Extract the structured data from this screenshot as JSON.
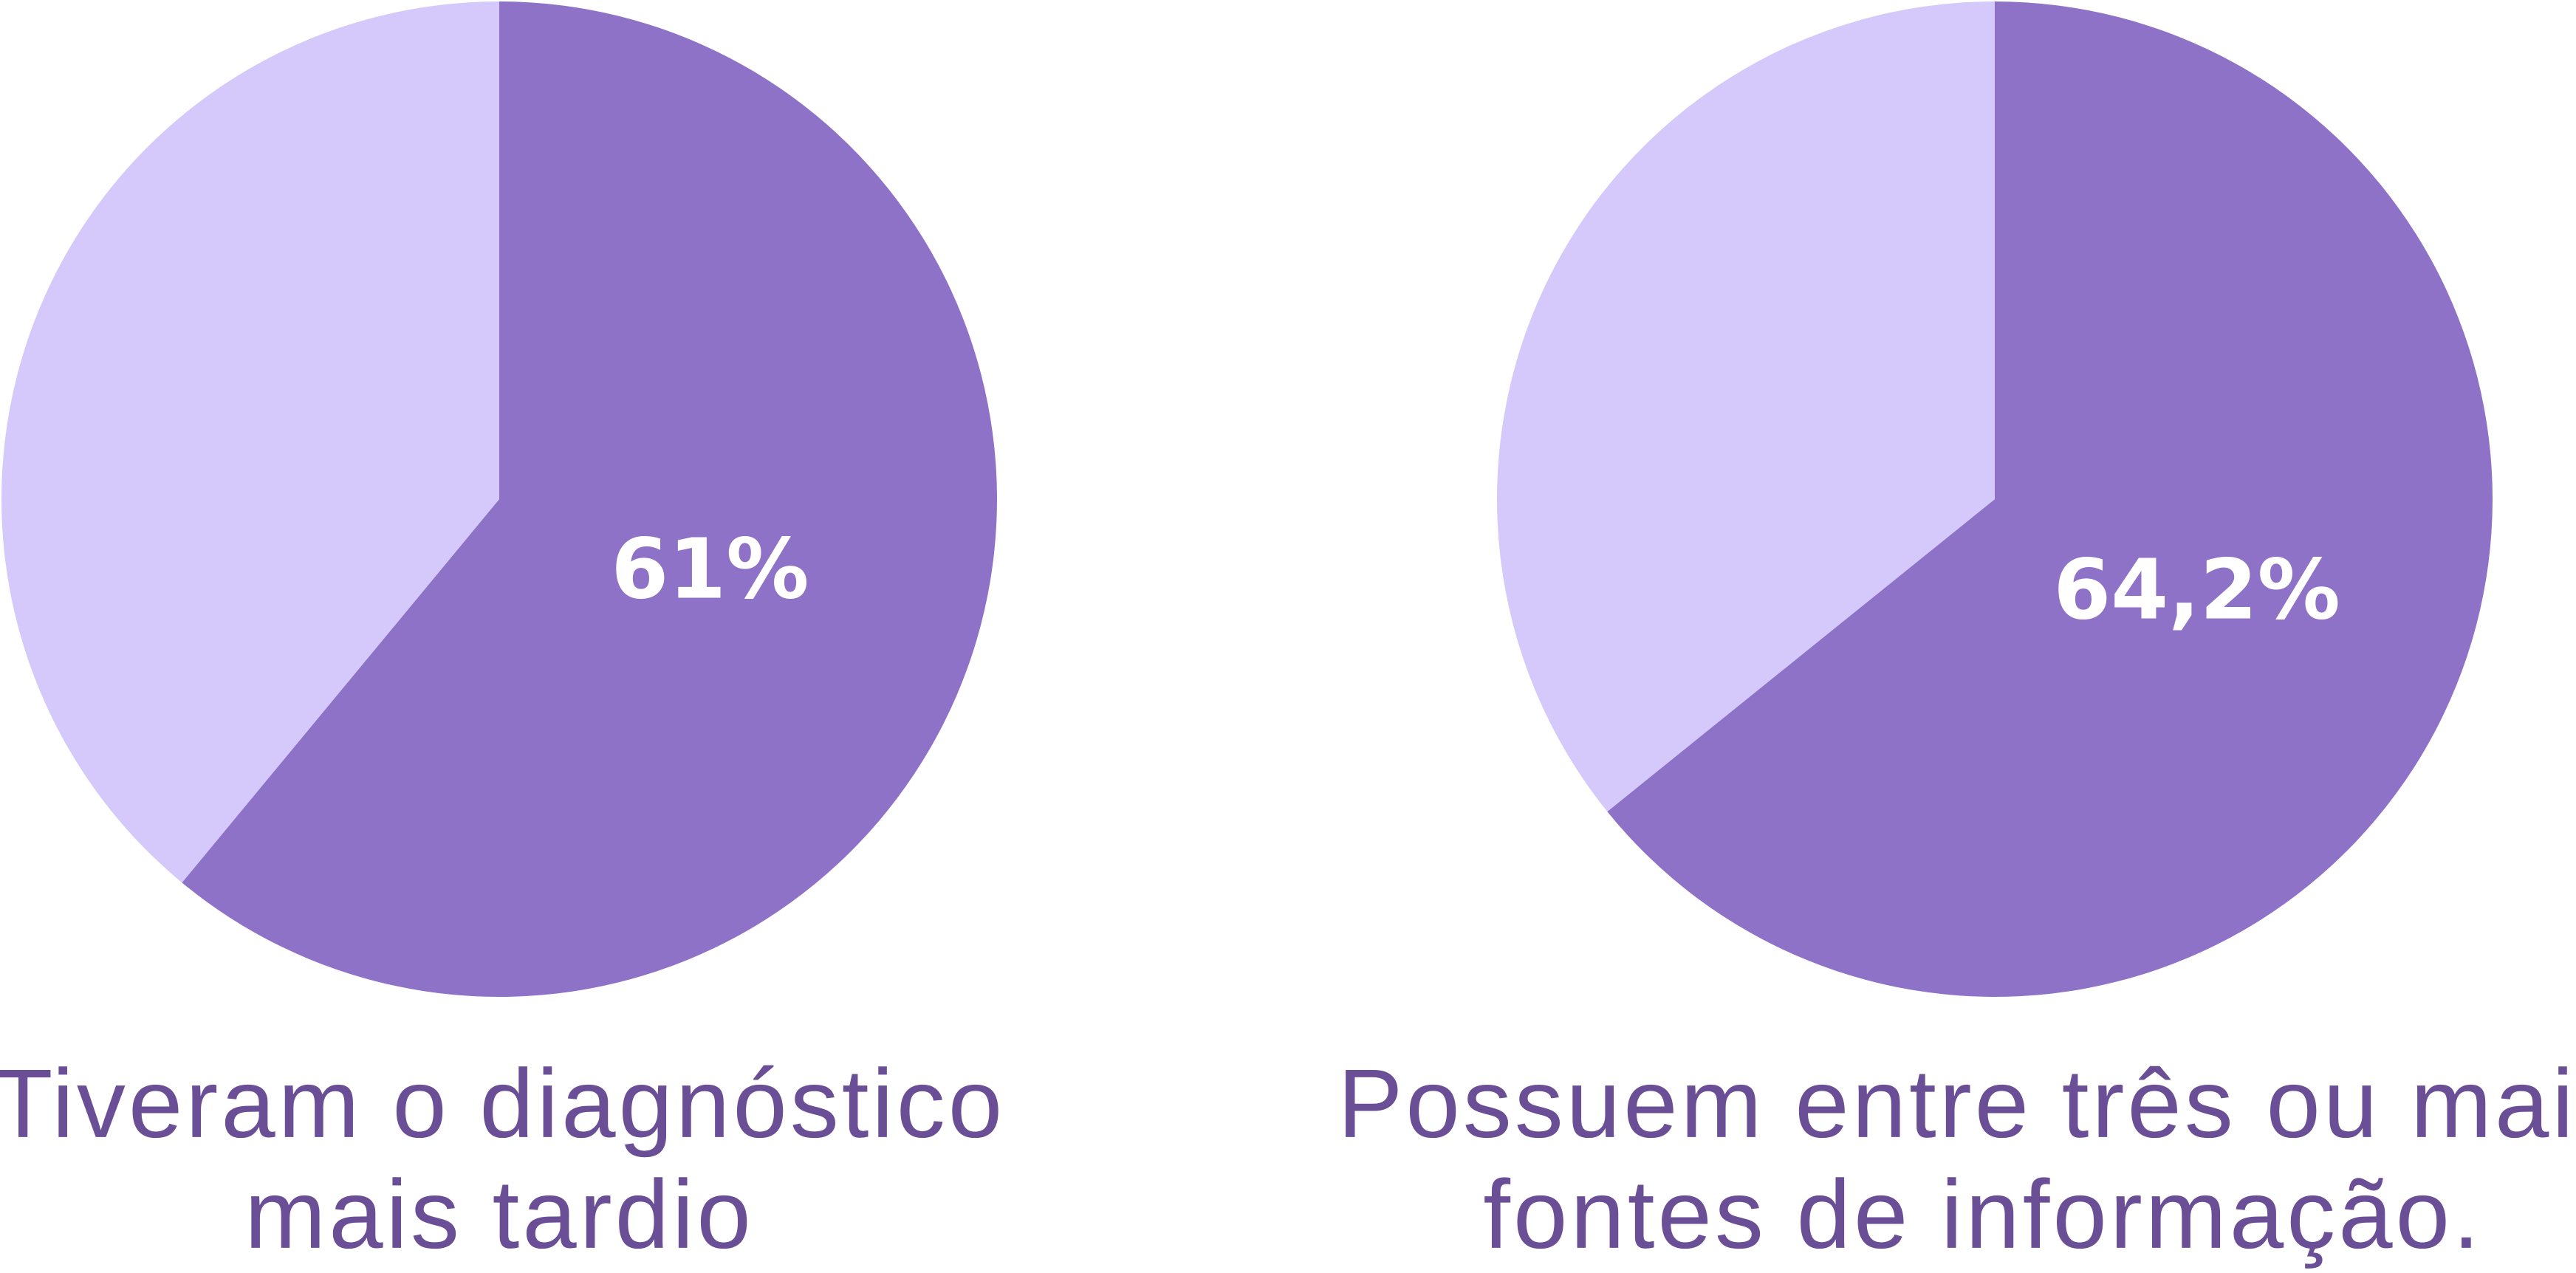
{
  "chart_data": [
    {
      "type": "pie",
      "values": [
        61,
        39
      ],
      "value_labels": [
        "61%",
        null
      ],
      "colors": [
        "#8e72c7",
        "#d4c9fa"
      ],
      "caption": [
        "Tiveram o diagnóstico",
        "mais tardio"
      ]
    },
    {
      "type": "pie",
      "values": [
        64.2,
        35.8
      ],
      "value_labels": [
        "64,2%",
        null
      ],
      "colors": [
        "#8e72c7",
        "#d4c9fa"
      ],
      "caption": [
        "Possuem entre três ou mais",
        "fontes de informação."
      ]
    }
  ]
}
